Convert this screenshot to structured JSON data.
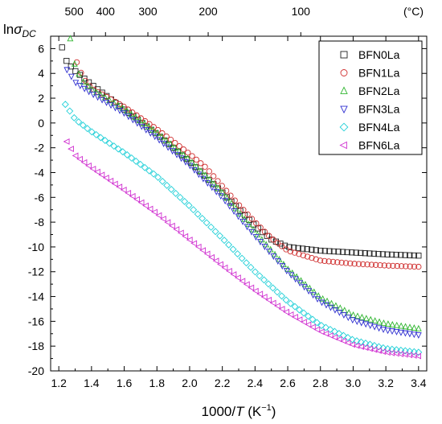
{
  "chart_data": {
    "type": "scatter",
    "xlabel_pre": "1000/",
    "xlabel_var": "T",
    "xlabel_post": " (K",
    "xlabel_sup": "−1",
    "xlabel_close": ")",
    "ylabel_base": "ln",
    "ylabel_sym": "σ",
    "ylabel_sub": "DC",
    "top_axis_unit": "(°C)",
    "xlim": [
      1.15,
      3.45
    ],
    "ylim": [
      -20,
      7
    ],
    "x_ticks": [
      "1.2",
      "1.4",
      "1.6",
      "1.8",
      "2.0",
      "2.2",
      "2.4",
      "2.6",
      "2.8",
      "3.0",
      "3.2",
      "3.4"
    ],
    "y_ticks": [
      "6",
      "4",
      "2",
      "0",
      "-2",
      "-4",
      "-6",
      "-8",
      "-10",
      "-12",
      "-14",
      "-16",
      "-18",
      "-20"
    ],
    "top_ticks": [
      {
        "label": "500",
        "celsius": 500
      },
      {
        "label": "400",
        "celsius": 400
      },
      {
        "label": "300",
        "celsius": 300
      },
      {
        "label": "200",
        "celsius": 200
      },
      {
        "label": "100",
        "celsius": 100
      }
    ],
    "legend_position": "top-right",
    "series": [
      {
        "name": "BFN0La",
        "marker": "square",
        "color": "#222222",
        "curve": [
          [
            1.22,
            6.1
          ],
          [
            1.25,
            4.9
          ],
          [
            1.3,
            4.2
          ],
          [
            1.4,
            3.1
          ],
          [
            1.6,
            1.1
          ],
          [
            1.8,
            -0.9
          ],
          [
            2.0,
            -3.1
          ],
          [
            2.2,
            -5.6
          ],
          [
            2.4,
            -8.3
          ],
          [
            2.5,
            -9.4
          ],
          [
            2.6,
            -10.0
          ],
          [
            2.8,
            -10.3
          ],
          [
            3.0,
            -10.45
          ],
          [
            3.2,
            -10.6
          ],
          [
            3.4,
            -10.7
          ]
        ]
      },
      {
        "name": "BFN1La",
        "marker": "circle",
        "color": "#d03030",
        "curve": [
          [
            1.31,
            4.9
          ],
          [
            1.35,
            3.6
          ],
          [
            1.4,
            2.8
          ],
          [
            1.6,
            1.3
          ],
          [
            1.8,
            -0.5
          ],
          [
            2.0,
            -2.5
          ],
          [
            2.1,
            -3.6
          ],
          [
            2.2,
            -5.1
          ],
          [
            2.3,
            -6.6
          ],
          [
            2.4,
            -8.0
          ],
          [
            2.5,
            -9.3
          ],
          [
            2.6,
            -10.3
          ],
          [
            2.8,
            -11.1
          ],
          [
            3.0,
            -11.35
          ],
          [
            3.2,
            -11.5
          ],
          [
            3.4,
            -11.6
          ]
        ]
      },
      {
        "name": "BFN2La",
        "marker": "triangle-up",
        "color": "#2fb52f",
        "curve": [
          [
            1.27,
            6.8
          ],
          [
            1.3,
            4.5
          ],
          [
            1.35,
            3.3
          ],
          [
            1.4,
            2.7
          ],
          [
            1.6,
            1.1
          ],
          [
            1.8,
            -0.8
          ],
          [
            2.0,
            -3.0
          ],
          [
            2.2,
            -5.6
          ],
          [
            2.4,
            -8.8
          ],
          [
            2.6,
            -11.8
          ],
          [
            2.8,
            -14.1
          ],
          [
            3.0,
            -15.5
          ],
          [
            3.2,
            -16.2
          ],
          [
            3.4,
            -16.6
          ]
        ]
      },
      {
        "name": "BFN3La",
        "marker": "triangle-down",
        "color": "#2f2fd0",
        "curve": [
          [
            1.25,
            4.3
          ],
          [
            1.3,
            3.3
          ],
          [
            1.4,
            2.4
          ],
          [
            1.6,
            0.8
          ],
          [
            1.8,
            -1.2
          ],
          [
            2.0,
            -3.4
          ],
          [
            2.2,
            -6.0
          ],
          [
            2.4,
            -9.1
          ],
          [
            2.6,
            -12.0
          ],
          [
            2.8,
            -14.4
          ],
          [
            3.0,
            -15.9
          ],
          [
            3.2,
            -16.7
          ],
          [
            3.4,
            -17.1
          ]
        ]
      },
      {
        "name": "BFN4La",
        "marker": "diamond",
        "color": "#22d0d8",
        "curve": [
          [
            1.24,
            1.5
          ],
          [
            1.3,
            0.3
          ],
          [
            1.4,
            -0.7
          ],
          [
            1.6,
            -2.4
          ],
          [
            1.8,
            -4.3
          ],
          [
            2.0,
            -6.7
          ],
          [
            2.2,
            -9.3
          ],
          [
            2.4,
            -12.0
          ],
          [
            2.6,
            -14.4
          ],
          [
            2.8,
            -16.3
          ],
          [
            3.0,
            -17.5
          ],
          [
            3.2,
            -18.2
          ],
          [
            3.4,
            -18.5
          ]
        ]
      },
      {
        "name": "BFN6La",
        "marker": "triangle-left",
        "color": "#d030d0",
        "curve": [
          [
            1.25,
            -1.5
          ],
          [
            1.3,
            -2.6
          ],
          [
            1.4,
            -3.6
          ],
          [
            1.6,
            -5.4
          ],
          [
            1.8,
            -7.3
          ],
          [
            2.0,
            -9.4
          ],
          [
            2.2,
            -11.5
          ],
          [
            2.4,
            -13.5
          ],
          [
            2.6,
            -15.3
          ],
          [
            2.8,
            -16.8
          ],
          [
            3.0,
            -17.9
          ],
          [
            3.2,
            -18.5
          ],
          [
            3.4,
            -18.8
          ]
        ]
      }
    ]
  }
}
